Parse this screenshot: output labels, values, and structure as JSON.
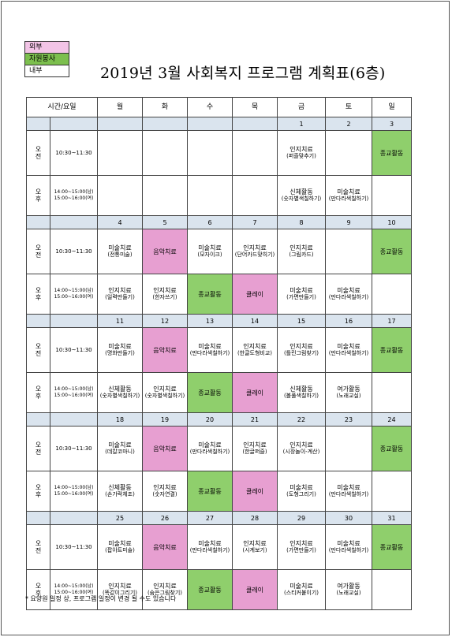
{
  "legend": [
    {
      "label": "외부",
      "color": "#f2c4e6"
    },
    {
      "label": "자원봉사",
      "color": "#7cbf4e"
    },
    {
      "label": "내부",
      "color": "#ffffff"
    }
  ],
  "title": "2019년 3월 사회복지 프로그램 계획표(6층)",
  "header": {
    "time_day": "시간/요일",
    "days": [
      "월",
      "화",
      "수",
      "목",
      "금",
      "토",
      "일"
    ]
  },
  "periods": {
    "am": [
      "오",
      "전"
    ],
    "pm": [
      "오",
      "후"
    ]
  },
  "times": {
    "am": "10:30~11:30",
    "pm": [
      "14:00~15:00(남)",
      "15:00~16:00(여)"
    ]
  },
  "weeks": [
    {
      "dates": [
        "",
        "",
        "",
        "",
        "1",
        "2",
        "3"
      ],
      "am": [
        {
          "lines": []
        },
        {
          "lines": []
        },
        {
          "lines": []
        },
        {
          "lines": []
        },
        {
          "lines": [
            "인지치료",
            "(퍼즐맞추기)"
          ]
        },
        {
          "lines": []
        },
        {
          "lines": [
            "종교활동"
          ],
          "color": "green"
        }
      ],
      "pm": [
        {
          "lines": []
        },
        {
          "lines": []
        },
        {
          "lines": []
        },
        {
          "lines": []
        },
        {
          "lines": [
            "신체활동",
            "(숫자별색칠하기)"
          ]
        },
        {
          "lines": [
            "미술치료",
            "(만다라색칠하기)"
          ]
        },
        {
          "lines": []
        }
      ]
    },
    {
      "dates": [
        "4",
        "5",
        "6",
        "7",
        "8",
        "9",
        "10"
      ],
      "am": [
        {
          "lines": [
            "미술치료",
            "(전통미술)"
          ]
        },
        {
          "lines": [
            "음악치료"
          ],
          "color": "pink"
        },
        {
          "lines": [
            "미술치료",
            "(모자이크)"
          ]
        },
        {
          "lines": [
            "인지치료",
            "(단어카드맞히기)"
          ]
        },
        {
          "lines": [
            "인지치료",
            "(그림카드)"
          ]
        },
        {
          "lines": []
        },
        {
          "lines": [
            "종교활동"
          ],
          "color": "green"
        }
      ],
      "pm": [
        {
          "lines": [
            "인지치료",
            "(일력만들기)"
          ]
        },
        {
          "lines": [
            "인지치료",
            "(한자쓰기)"
          ]
        },
        {
          "lines": [
            "종교활동"
          ],
          "color": "green"
        },
        {
          "lines": [
            "클레이"
          ],
          "color": "pink"
        },
        {
          "lines": [
            "미술치료",
            "(가면만들기)"
          ]
        },
        {
          "lines": [
            "미술치료",
            "(만다라색칠하기)"
          ]
        },
        {
          "lines": []
        }
      ]
    },
    {
      "dates": [
        "11",
        "12",
        "13",
        "14",
        "15",
        "16",
        "17"
      ],
      "am": [
        {
          "lines": [
            "미술치료",
            "(명화만들기)"
          ]
        },
        {
          "lines": [
            "음악치료"
          ],
          "color": "pink"
        },
        {
          "lines": [
            "미술치료",
            "(만다라색칠하기)"
          ]
        },
        {
          "lines": [
            "인지치료",
            "(한글도형비교)"
          ]
        },
        {
          "lines": [
            "인지치료",
            "(틀린그림찾기)"
          ]
        },
        {
          "lines": [
            "미술치료",
            "(만다라색칠하기)"
          ]
        },
        {
          "lines": [
            "종교활동"
          ],
          "color": "green"
        }
      ],
      "pm": [
        {
          "lines": [
            "신체활동",
            "(숫자별색칠하기)"
          ]
        },
        {
          "lines": [
            "인지치료",
            "(숫자별색칠하기)"
          ]
        },
        {
          "lines": [
            "종교활동"
          ],
          "color": "green"
        },
        {
          "lines": [
            "클레이"
          ],
          "color": "pink"
        },
        {
          "lines": [
            "신체활동",
            "(볼풀색칠하기)"
          ]
        },
        {
          "lines": [
            "여가활동",
            "(노래교실)"
          ]
        },
        {
          "lines": []
        }
      ]
    },
    {
      "dates": [
        "18",
        "19",
        "20",
        "21",
        "22",
        "23",
        "24"
      ],
      "am": [
        {
          "lines": [
            "미술치료",
            "(데칼코마니)"
          ]
        },
        {
          "lines": [
            "음악치료"
          ],
          "color": "pink"
        },
        {
          "lines": [
            "미술치료",
            "(만다라색칠하기)"
          ]
        },
        {
          "lines": [
            "인지치료",
            "(한글퍼즐)"
          ]
        },
        {
          "lines": [
            "인지치료",
            "(시장놀이-계산)"
          ]
        },
        {
          "lines": []
        },
        {
          "lines": [
            "종교활동"
          ],
          "color": "green"
        }
      ],
      "pm": [
        {
          "lines": [
            "신체활동",
            "(손가락체조)"
          ]
        },
        {
          "lines": [
            "인지치료",
            "(숫자연결)"
          ]
        },
        {
          "lines": [
            "종교활동"
          ],
          "color": "green"
        },
        {
          "lines": [
            "클레이"
          ],
          "color": "pink"
        },
        {
          "lines": [
            "미술치료",
            "(도형그리기)"
          ]
        },
        {
          "lines": [
            "미술치료",
            "(만다라색칠하기)"
          ]
        },
        {
          "lines": []
        }
      ]
    },
    {
      "dates": [
        "25",
        "26",
        "27",
        "28",
        "29",
        "30",
        "31"
      ],
      "am": [
        {
          "lines": [
            "미술치료",
            "(팝아트미술)"
          ]
        },
        {
          "lines": [
            "음악치료"
          ],
          "color": "pink"
        },
        {
          "lines": [
            "미술치료",
            "(만다라색칠하기)"
          ]
        },
        {
          "lines": [
            "인지치료",
            "(시계보기)"
          ]
        },
        {
          "lines": [
            "인지치료",
            "(가면만들기)"
          ]
        },
        {
          "lines": [
            "미술치료",
            "(만다라색칠하기)"
          ]
        },
        {
          "lines": [
            "종교활동"
          ],
          "color": "green"
        }
      ],
      "pm": [
        {
          "lines": [
            "인지치료",
            "(똑같이그리기)"
          ]
        },
        {
          "lines": [
            "인지치료",
            "(숨은그림찾기)"
          ]
        },
        {
          "lines": [
            "종교활동"
          ],
          "color": "green"
        },
        {
          "lines": [
            "클레이"
          ],
          "color": "pink"
        },
        {
          "lines": [
            "미술치료",
            "(스티커붙이기)"
          ]
        },
        {
          "lines": [
            "여가활동",
            "(노래교실)"
          ]
        },
        {
          "lines": []
        }
      ]
    }
  ],
  "note": "* 요양원 일정 상, 프로그램 일정이 변경 될 수도 있습니다"
}
